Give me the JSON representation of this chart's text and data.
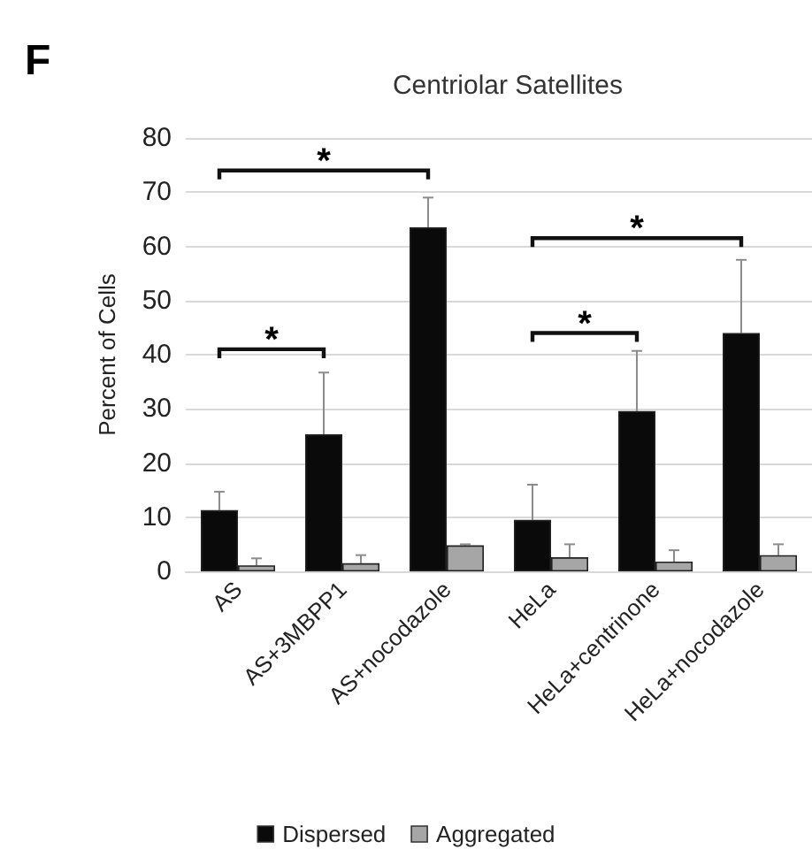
{
  "chart_data": {
    "type": "bar",
    "title": "Centriolar Satellites",
    "ylabel": "Percent of Cells",
    "annotations": [
      "F",
      "*",
      "*",
      "*",
      "*"
    ],
    "categories": [
      "AS",
      "AS+3MBPP1",
      "AS+nocodazole",
      "HeLa",
      "HeLa+centrinone",
      "HeLa+nocodazole"
    ],
    "series": [
      {
        "name": "Dispersed",
        "color": "#0a0a0a",
        "values": [
          11.3,
          25.3,
          63.5,
          9.5,
          29.6,
          44
        ],
        "errors": [
          [
            11.3,
            14.7
          ],
          [
            25.3,
            36.7
          ],
          [
            63.5,
            69
          ],
          [
            9.5,
            16
          ],
          [
            29.6,
            40.7
          ],
          [
            44,
            57.5
          ]
        ]
      },
      {
        "name": "Aggregated",
        "color": "#a6a6a6",
        "values": [
          1.1,
          1.5,
          4.8,
          2.6,
          1.8,
          3.0
        ],
        "errors": [
          [
            1.1,
            2.4
          ],
          [
            1.5,
            3
          ],
          [
            4.8,
            5
          ],
          [
            2.6,
            5
          ],
          [
            1.8,
            3.9
          ],
          [
            3.0,
            5
          ]
        ]
      }
    ],
    "ylim": [
      0,
      80
    ],
    "yticks": [
      0,
      10,
      20,
      30,
      40,
      50,
      60,
      70,
      80
    ],
    "grid": "y",
    "legend": "bottom"
  }
}
